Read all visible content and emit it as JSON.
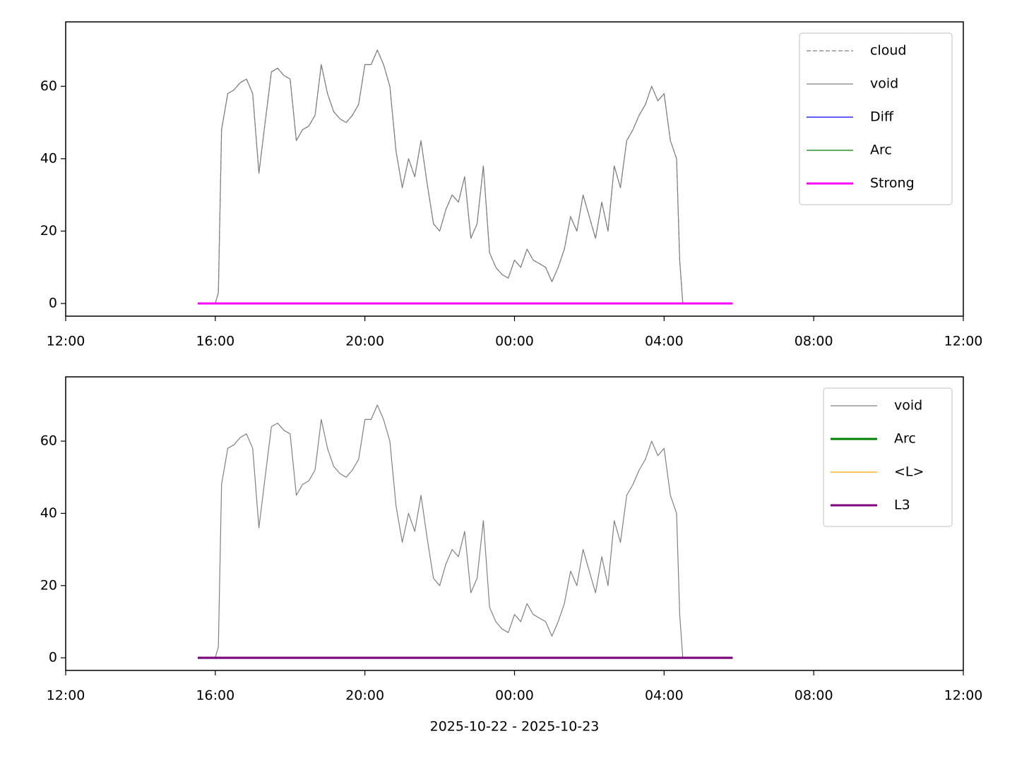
{
  "chart_data": [
    {
      "type": "line",
      "legend": "upper right",
      "xlim": [
        "2025-10-22 12:00",
        "2025-10-23 12:00"
      ],
      "xticks": [
        {
          "value": "2025-10-22 12:00",
          "label": "12:00"
        },
        {
          "value": "2025-10-22 16:00",
          "label": "16:00"
        },
        {
          "value": "2025-10-22 20:00",
          "label": "20:00"
        },
        {
          "value": "2025-10-23 00:00",
          "label": "00:00"
        },
        {
          "value": "2025-10-23 04:00",
          "label": "04:00"
        },
        {
          "value": "2025-10-23 08:00",
          "label": "08:00"
        },
        {
          "value": "2025-10-23 12:00",
          "label": "12:00"
        }
      ],
      "ylim": [
        -3.5,
        77.8
      ],
      "yticks": [
        0,
        20,
        40,
        60
      ],
      "series": [
        {
          "name": "cloud",
          "color": "#808080",
          "linestyle": "dashed",
          "linewidth": 1.2,
          "x": [
            "2025-10-22 16:00",
            "2025-10-22 16:05",
            "2025-10-22 16:10",
            "2025-10-22 16:20",
            "2025-10-22 16:30",
            "2025-10-22 16:40",
            "2025-10-22 16:50",
            "2025-10-22 17:00",
            "2025-10-22 17:10",
            "2025-10-22 17:20",
            "2025-10-22 17:30",
            "2025-10-22 17:40",
            "2025-10-22 17:50",
            "2025-10-22 18:00",
            "2025-10-22 18:10",
            "2025-10-22 18:20",
            "2025-10-22 18:30",
            "2025-10-22 18:40",
            "2025-10-22 18:50",
            "2025-10-22 19:00",
            "2025-10-22 19:10",
            "2025-10-22 19:20",
            "2025-10-22 19:30",
            "2025-10-22 19:40",
            "2025-10-22 19:50",
            "2025-10-22 20:00",
            "2025-10-22 20:10",
            "2025-10-22 20:20",
            "2025-10-22 20:30",
            "2025-10-22 20:40",
            "2025-10-22 20:50",
            "2025-10-22 21:00",
            "2025-10-22 21:10",
            "2025-10-22 21:20",
            "2025-10-22 21:30",
            "2025-10-22 21:40",
            "2025-10-22 21:50",
            "2025-10-22 22:00",
            "2025-10-22 22:10",
            "2025-10-22 22:20",
            "2025-10-22 22:30",
            "2025-10-22 22:40",
            "2025-10-22 22:50",
            "2025-10-22 23:00",
            "2025-10-22 23:10",
            "2025-10-22 23:20",
            "2025-10-22 23:30",
            "2025-10-22 23:40",
            "2025-10-22 23:50",
            "2025-10-23 00:00",
            "2025-10-23 00:10",
            "2025-10-23 00:20",
            "2025-10-23 00:30",
            "2025-10-23 00:40",
            "2025-10-23 00:50",
            "2025-10-23 01:00",
            "2025-10-23 01:10",
            "2025-10-23 01:20",
            "2025-10-23 01:30",
            "2025-10-23 01:40",
            "2025-10-23 01:50",
            "2025-10-23 02:00",
            "2025-10-23 02:10",
            "2025-10-23 02:20",
            "2025-10-23 02:30",
            "2025-10-23 02:40",
            "2025-10-23 02:50",
            "2025-10-23 03:00",
            "2025-10-23 03:10",
            "2025-10-23 03:20",
            "2025-10-23 03:30",
            "2025-10-23 03:40",
            "2025-10-23 03:50",
            "2025-10-23 04:00",
            "2025-10-23 04:10",
            "2025-10-23 04:20",
            "2025-10-23 04:25",
            "2025-10-23 04:30"
          ],
          "values": [
            0,
            3,
            48,
            58,
            59,
            61,
            62,
            58,
            36,
            50,
            64,
            65,
            63,
            62,
            45,
            48,
            49,
            52,
            66,
            58,
            53,
            51,
            50,
            52,
            55,
            66,
            66,
            70,
            66,
            60,
            42,
            32,
            40,
            35,
            45,
            33,
            22,
            20,
            26,
            30,
            28,
            35,
            18,
            22,
            38,
            14,
            10,
            8,
            7,
            12,
            10,
            15,
            12,
            11,
            10,
            6,
            10,
            15,
            24,
            20,
            30,
            24,
            18,
            28,
            20,
            38,
            32,
            45,
            48,
            52,
            55,
            60,
            56,
            58,
            45,
            40,
            12,
            0
          ]
        },
        {
          "name": "void",
          "color": "#808080",
          "linewidth": 1.2,
          "x": [
            "2025-10-22 16:00",
            "2025-10-22 16:05",
            "2025-10-22 16:10",
            "2025-10-22 16:20",
            "2025-10-22 16:30",
            "2025-10-22 16:40",
            "2025-10-22 16:50",
            "2025-10-22 17:00",
            "2025-10-22 17:10",
            "2025-10-22 17:20",
            "2025-10-22 17:30",
            "2025-10-22 17:40",
            "2025-10-22 17:50",
            "2025-10-22 18:00",
            "2025-10-22 18:10",
            "2025-10-22 18:20",
            "2025-10-22 18:30",
            "2025-10-22 18:40",
            "2025-10-22 18:50",
            "2025-10-22 19:00",
            "2025-10-22 19:10",
            "2025-10-22 19:20",
            "2025-10-22 19:30",
            "2025-10-22 19:40",
            "2025-10-22 19:50",
            "2025-10-22 20:00",
            "2025-10-22 20:10",
            "2025-10-22 20:20",
            "2025-10-22 20:30",
            "2025-10-22 20:40",
            "2025-10-22 20:50",
            "2025-10-22 21:00",
            "2025-10-22 21:10",
            "2025-10-22 21:20",
            "2025-10-22 21:30",
            "2025-10-22 21:40",
            "2025-10-22 21:50",
            "2025-10-22 22:00",
            "2025-10-22 22:10",
            "2025-10-22 22:20",
            "2025-10-22 22:30",
            "2025-10-22 22:40",
            "2025-10-22 22:50",
            "2025-10-22 23:00",
            "2025-10-22 23:10",
            "2025-10-22 23:20",
            "2025-10-22 23:30",
            "2025-10-22 23:40",
            "2025-10-22 23:50",
            "2025-10-23 00:00",
            "2025-10-23 00:10",
            "2025-10-23 00:20",
            "2025-10-23 00:30",
            "2025-10-23 00:40",
            "2025-10-23 00:50",
            "2025-10-23 01:00",
            "2025-10-23 01:10",
            "2025-10-23 01:20",
            "2025-10-23 01:30",
            "2025-10-23 01:40",
            "2025-10-23 01:50",
            "2025-10-23 02:00",
            "2025-10-23 02:10",
            "2025-10-23 02:20",
            "2025-10-23 02:30",
            "2025-10-23 02:40",
            "2025-10-23 02:50",
            "2025-10-23 03:00",
            "2025-10-23 03:10",
            "2025-10-23 03:20",
            "2025-10-23 03:30",
            "2025-10-23 03:40",
            "2025-10-23 03:50",
            "2025-10-23 04:00",
            "2025-10-23 04:10",
            "2025-10-23 04:20",
            "2025-10-23 04:25",
            "2025-10-23 04:30"
          ],
          "values": [
            0,
            3,
            48,
            58,
            59,
            61,
            62,
            58,
            36,
            50,
            64,
            65,
            63,
            62,
            45,
            48,
            49,
            52,
            66,
            58,
            53,
            51,
            50,
            52,
            55,
            66,
            66,
            70,
            66,
            60,
            42,
            32,
            40,
            35,
            45,
            33,
            22,
            20,
            26,
            30,
            28,
            35,
            18,
            22,
            38,
            14,
            10,
            8,
            7,
            12,
            10,
            15,
            12,
            11,
            10,
            6,
            10,
            15,
            24,
            20,
            30,
            24,
            18,
            28,
            20,
            38,
            32,
            45,
            48,
            52,
            55,
            60,
            56,
            58,
            45,
            40,
            12,
            0
          ]
        },
        {
          "name": "Diff",
          "color": "#0000ff",
          "linewidth": 1.2,
          "x": [
            "2025-10-22 15:32",
            "2025-10-23 05:50"
          ],
          "values": [
            0,
            0
          ]
        },
        {
          "name": "Arc",
          "color": "#008000",
          "linewidth": 1.2,
          "x": [
            "2025-10-22 15:32",
            "2025-10-23 05:50"
          ],
          "values": [
            0,
            0
          ]
        },
        {
          "name": "Strong",
          "color": "#ff00ff",
          "linewidth": 3,
          "x": [
            "2025-10-22 15:32",
            "2025-10-23 05:50"
          ],
          "values": [
            0,
            0
          ]
        }
      ]
    },
    {
      "type": "line",
      "legend": "upper right",
      "xlabel": "2025-10-22 - 2025-10-23",
      "xlim": [
        "2025-10-22 12:00",
        "2025-10-23 12:00"
      ],
      "xticks": [
        {
          "value": "2025-10-22 12:00",
          "label": "12:00"
        },
        {
          "value": "2025-10-22 16:00",
          "label": "16:00"
        },
        {
          "value": "2025-10-22 20:00",
          "label": "20:00"
        },
        {
          "value": "2025-10-23 00:00",
          "label": "00:00"
        },
        {
          "value": "2025-10-23 04:00",
          "label": "04:00"
        },
        {
          "value": "2025-10-23 08:00",
          "label": "08:00"
        },
        {
          "value": "2025-10-23 12:00",
          "label": "12:00"
        }
      ],
      "ylim": [
        -3.5,
        77.8
      ],
      "yticks": [
        0,
        20,
        40,
        60
      ],
      "series": [
        {
          "name": "void",
          "color": "#808080",
          "linewidth": 1.2,
          "x": [
            "2025-10-22 16:00",
            "2025-10-22 16:05",
            "2025-10-22 16:10",
            "2025-10-22 16:20",
            "2025-10-22 16:30",
            "2025-10-22 16:40",
            "2025-10-22 16:50",
            "2025-10-22 17:00",
            "2025-10-22 17:10",
            "2025-10-22 17:20",
            "2025-10-22 17:30",
            "2025-10-22 17:40",
            "2025-10-22 17:50",
            "2025-10-22 18:00",
            "2025-10-22 18:10",
            "2025-10-22 18:20",
            "2025-10-22 18:30",
            "2025-10-22 18:40",
            "2025-10-22 18:50",
            "2025-10-22 19:00",
            "2025-10-22 19:10",
            "2025-10-22 19:20",
            "2025-10-22 19:30",
            "2025-10-22 19:40",
            "2025-10-22 19:50",
            "2025-10-22 20:00",
            "2025-10-22 20:10",
            "2025-10-22 20:20",
            "2025-10-22 20:30",
            "2025-10-22 20:40",
            "2025-10-22 20:50",
            "2025-10-22 21:00",
            "2025-10-22 21:10",
            "2025-10-22 21:20",
            "2025-10-22 21:30",
            "2025-10-22 21:40",
            "2025-10-22 21:50",
            "2025-10-22 22:00",
            "2025-10-22 22:10",
            "2025-10-22 22:20",
            "2025-10-22 22:30",
            "2025-10-22 22:40",
            "2025-10-22 22:50",
            "2025-10-22 23:00",
            "2025-10-22 23:10",
            "2025-10-22 23:20",
            "2025-10-22 23:30",
            "2025-10-22 23:40",
            "2025-10-22 23:50",
            "2025-10-23 00:00",
            "2025-10-23 00:10",
            "2025-10-23 00:20",
            "2025-10-23 00:30",
            "2025-10-23 00:40",
            "2025-10-23 00:50",
            "2025-10-23 01:00",
            "2025-10-23 01:10",
            "2025-10-23 01:20",
            "2025-10-23 01:30",
            "2025-10-23 01:40",
            "2025-10-23 01:50",
            "2025-10-23 02:00",
            "2025-10-23 02:10",
            "2025-10-23 02:20",
            "2025-10-23 02:30",
            "2025-10-23 02:40",
            "2025-10-23 02:50",
            "2025-10-23 03:00",
            "2025-10-23 03:10",
            "2025-10-23 03:20",
            "2025-10-23 03:30",
            "2025-10-23 03:40",
            "2025-10-23 03:50",
            "2025-10-23 04:00",
            "2025-10-23 04:10",
            "2025-10-23 04:20",
            "2025-10-23 04:25",
            "2025-10-23 04:30"
          ],
          "values": [
            0,
            3,
            48,
            58,
            59,
            61,
            62,
            58,
            36,
            50,
            64,
            65,
            63,
            62,
            45,
            48,
            49,
            52,
            66,
            58,
            53,
            51,
            50,
            52,
            55,
            66,
            66,
            70,
            66,
            60,
            42,
            32,
            40,
            35,
            45,
            33,
            22,
            20,
            26,
            30,
            28,
            35,
            18,
            22,
            38,
            14,
            10,
            8,
            7,
            12,
            10,
            15,
            12,
            11,
            10,
            6,
            10,
            15,
            24,
            20,
            30,
            24,
            18,
            28,
            20,
            38,
            32,
            45,
            48,
            52,
            55,
            60,
            56,
            58,
            45,
            40,
            12,
            0
          ]
        },
        {
          "name": "Arc",
          "color": "#008000",
          "linewidth": 3,
          "x": [
            "2025-10-22 15:32",
            "2025-10-23 05:50"
          ],
          "values": [
            0,
            0
          ]
        },
        {
          "name": "<L>",
          "color": "#ffa500",
          "linewidth": 1.2,
          "x": [
            "2025-10-22 15:32",
            "2025-10-23 05:50"
          ],
          "values": [
            0,
            0
          ]
        },
        {
          "name": "L3",
          "color": "#800080",
          "linewidth": 3,
          "x": [
            "2025-10-22 15:32",
            "2025-10-23 05:50"
          ],
          "values": [
            0,
            0
          ]
        }
      ]
    }
  ]
}
